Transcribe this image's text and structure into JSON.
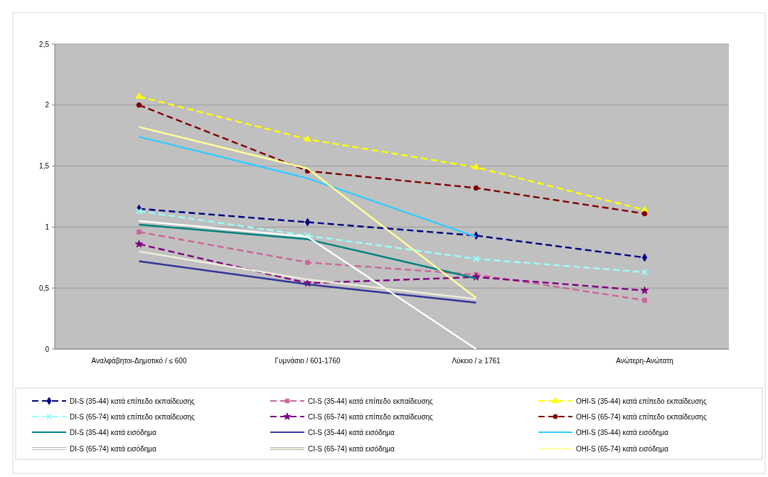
{
  "chart_data": {
    "type": "line",
    "categories": [
      "Αναλφάβητοι-Δημοτικό / ≤ 600",
      "Γυμνάσιο / 601-1760",
      "Λύκειο / ≥ 1761",
      "Ανώτερη-Ανώτατη"
    ],
    "ylim": [
      0,
      2.5
    ],
    "yticks": [
      0,
      {
        "value": 0.5,
        "label": "0,5"
      },
      1,
      {
        "value": 1.5,
        "label": "1,5"
      },
      2,
      {
        "value": 2.5,
        "label": "2,5"
      }
    ],
    "grid": "y",
    "legend": "bottom",
    "series": [
      {
        "name": "DI-S (35-44) κατά επίπεδο εκπαίδευσης",
        "color": "#000080",
        "line_style": "dashed",
        "marker": "diamond",
        "values": [
          1.15,
          1.04,
          0.93,
          0.75
        ]
      },
      {
        "name": "CI-S (35-44) κατά επίπεδο εκπαίδευσης",
        "color": "#cc6699",
        "line_style": "dashed",
        "marker": "square",
        "values": [
          0.96,
          0.71,
          0.61,
          0.4
        ]
      },
      {
        "name": "OHI-S (35-44) κατά επίπεδο εκπαίδευσης",
        "color": "#ffff00",
        "line_style": "dashed",
        "marker": "triangle",
        "values": [
          2.07,
          1.72,
          1.49,
          1.14
        ]
      },
      {
        "name": "DI-S (65-74) κατά επίπεδο εκπαίδευσης",
        "color": "#99ffff",
        "line_style": "dashed",
        "marker": "cross",
        "values": [
          1.13,
          0.93,
          0.74,
          0.63
        ]
      },
      {
        "name": "CI-S (65-74) κατά επίπεδο εκπαίδευσης",
        "color": "#800080",
        "line_style": "dashed",
        "marker": "star",
        "values": [
          0.86,
          0.54,
          0.59,
          0.48
        ]
      },
      {
        "name": "OHI-S (65-74) κατά επίπεδο εκπαίδευσης",
        "color": "#800000",
        "line_style": "dashed",
        "marker": "circle",
        "values": [
          2.0,
          1.46,
          1.32,
          1.11
        ]
      },
      {
        "name": "DI-S (35-44) κατά εισόδημα",
        "color": "#008080",
        "line_style": "solid",
        "marker": "none",
        "values": [
          1.02,
          0.9,
          0.58,
          null
        ]
      },
      {
        "name": "CI-S (35-44) κατά εισόδημα",
        "color": "#333399",
        "line_style": "solid",
        "marker": "none",
        "values": [
          0.72,
          0.53,
          0.38,
          null
        ]
      },
      {
        "name": "OHI-S (35-44) κατά εισόδημα",
        "color": "#33ccff",
        "line_style": "solid",
        "marker": "none",
        "values": [
          1.74,
          1.4,
          0.92,
          null
        ]
      },
      {
        "name": "DI-S (65-74) κατά εισόδημα",
        "color": "#ffffff",
        "line_style": "solid",
        "marker": "none",
        "values": [
          1.05,
          0.92,
          0,
          null
        ]
      },
      {
        "name": "CI-S (65-74) κατά εισόδημα",
        "color": "#eeeedd",
        "line_style": "solid",
        "marker": "none",
        "values": [
          0.8,
          0.57,
          0.41,
          null
        ]
      },
      {
        "name": "OHI-S (65-74) κατά εισόδημα",
        "color": "#ffff99",
        "line_style": "solid",
        "marker": "none",
        "values": [
          1.82,
          1.48,
          0.42,
          null
        ]
      }
    ]
  }
}
